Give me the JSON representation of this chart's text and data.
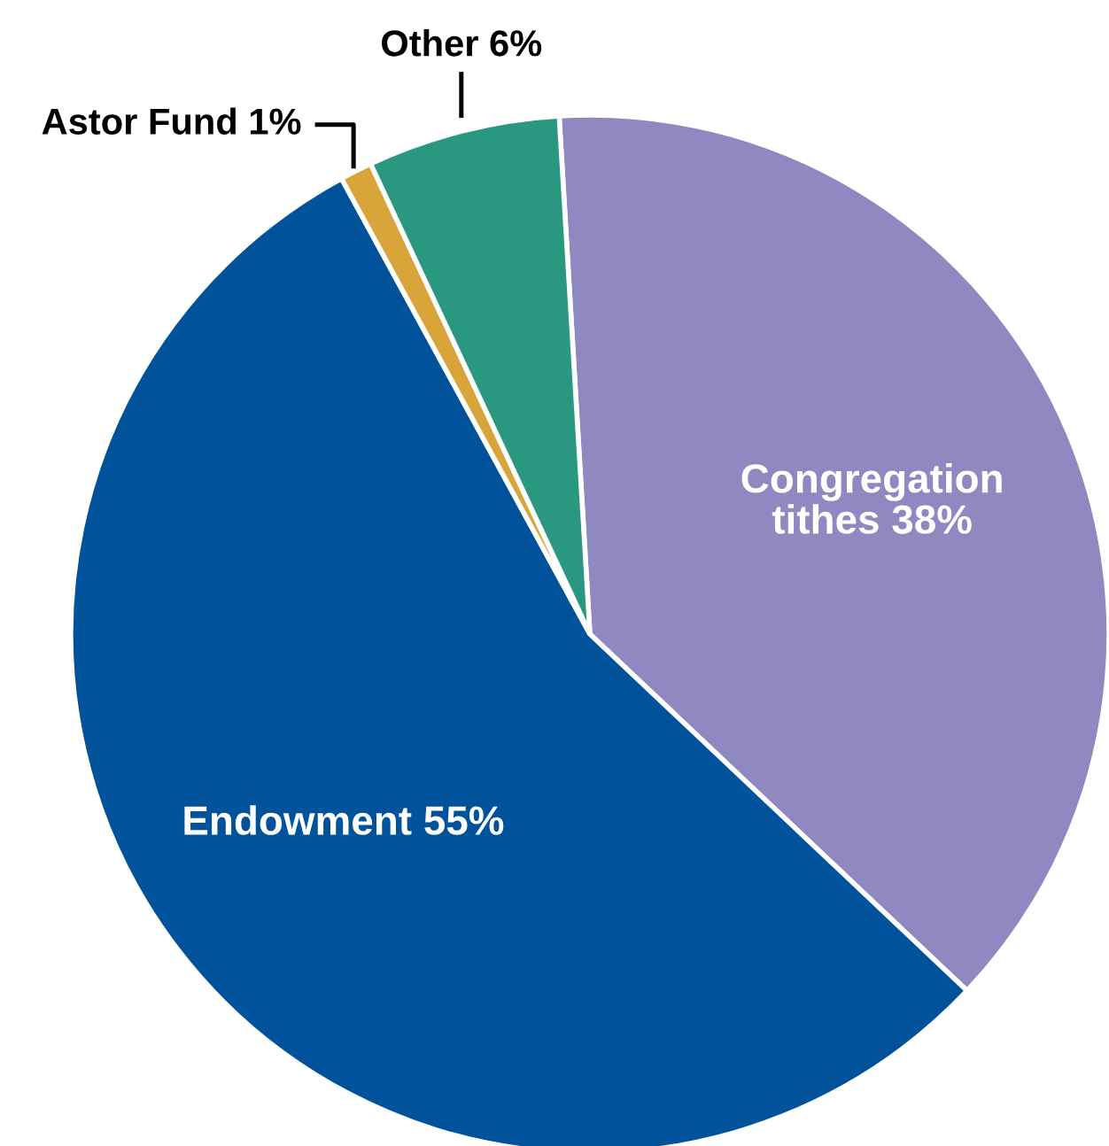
{
  "chart_data": {
    "type": "pie",
    "categories": [
      "Congregation tithes",
      "Endowment",
      "Astor Fund",
      "Other"
    ],
    "values": [
      38,
      55,
      1,
      6
    ],
    "value_labels": [
      "38%",
      "55%",
      "1%",
      "6%"
    ],
    "colors": [
      "#9088c0",
      "#00529b",
      "#d9a53a",
      "#2a9880"
    ],
    "legend": false
  }
}
